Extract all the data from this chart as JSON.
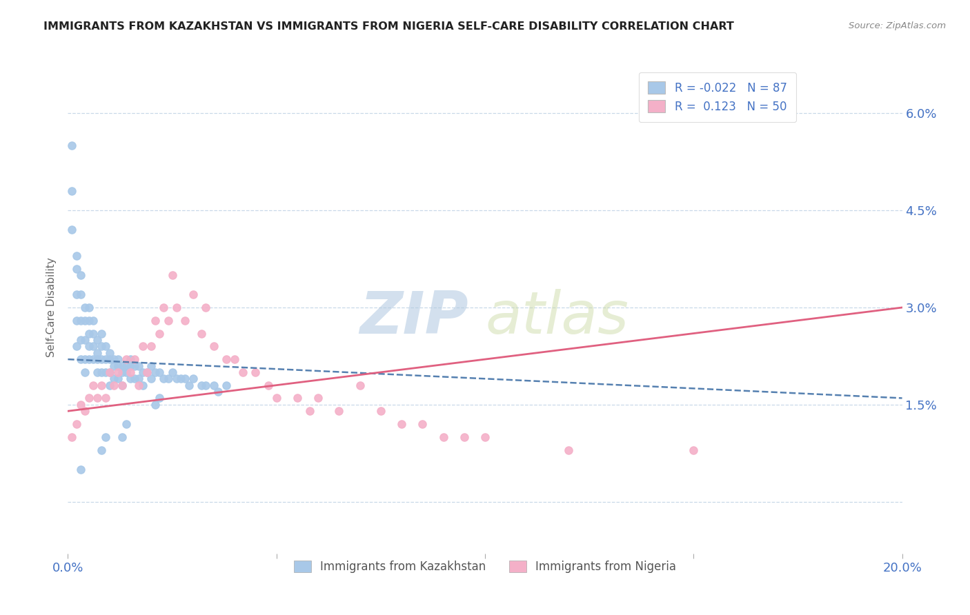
{
  "title": "IMMIGRANTS FROM KAZAKHSTAN VS IMMIGRANTS FROM NIGERIA SELF-CARE DISABILITY CORRELATION CHART",
  "source": "Source: ZipAtlas.com",
  "watermark_zip": "ZIP",
  "watermark_atlas": "atlas",
  "xlabel": "",
  "ylabel": "Self-Care Disability",
  "xlim": [
    0.0,
    0.2
  ],
  "ylim": [
    -0.008,
    0.068
  ],
  "kazakhstan_R": -0.022,
  "kazakhstan_N": 87,
  "nigeria_R": 0.123,
  "nigeria_N": 50,
  "kazakhstan_color": "#a8c8e8",
  "nigeria_color": "#f4b0c8",
  "kazakhstan_line_color": "#5580b0",
  "nigeria_line_color": "#e06080",
  "background_color": "#ffffff",
  "grid_color": "#c8d8e8",
  "title_color": "#222222",
  "axis_label_color": "#4472c4",
  "kaz_trend_x0": 0.0,
  "kaz_trend_x1": 0.2,
  "kaz_trend_y0": 0.022,
  "kaz_trend_y1": 0.016,
  "nig_trend_x0": 0.0,
  "nig_trend_x1": 0.2,
  "nig_trend_y0": 0.014,
  "nig_trend_y1": 0.03,
  "kazakhstan_x": [
    0.001,
    0.001,
    0.001,
    0.002,
    0.002,
    0.002,
    0.002,
    0.002,
    0.003,
    0.003,
    0.003,
    0.003,
    0.003,
    0.004,
    0.004,
    0.004,
    0.004,
    0.004,
    0.005,
    0.005,
    0.005,
    0.005,
    0.005,
    0.006,
    0.006,
    0.006,
    0.006,
    0.007,
    0.007,
    0.007,
    0.007,
    0.008,
    0.008,
    0.008,
    0.008,
    0.009,
    0.009,
    0.009,
    0.01,
    0.01,
    0.01,
    0.01,
    0.011,
    0.011,
    0.011,
    0.012,
    0.012,
    0.012,
    0.013,
    0.013,
    0.013,
    0.014,
    0.014,
    0.015,
    0.015,
    0.015,
    0.016,
    0.016,
    0.017,
    0.017,
    0.018,
    0.018,
    0.019,
    0.02,
    0.02,
    0.021,
    0.022,
    0.023,
    0.024,
    0.025,
    0.026,
    0.027,
    0.028,
    0.029,
    0.03,
    0.032,
    0.033,
    0.035,
    0.036,
    0.038,
    0.021,
    0.022,
    0.013,
    0.014,
    0.008,
    0.009,
    0.003
  ],
  "kazakhstan_y": [
    0.055,
    0.048,
    0.042,
    0.038,
    0.036,
    0.032,
    0.028,
    0.024,
    0.035,
    0.032,
    0.028,
    0.025,
    0.022,
    0.03,
    0.028,
    0.025,
    0.022,
    0.02,
    0.03,
    0.028,
    0.026,
    0.024,
    0.022,
    0.028,
    0.026,
    0.024,
    0.022,
    0.025,
    0.023,
    0.022,
    0.02,
    0.026,
    0.024,
    0.022,
    0.02,
    0.024,
    0.022,
    0.02,
    0.023,
    0.022,
    0.02,
    0.018,
    0.022,
    0.021,
    0.019,
    0.022,
    0.021,
    0.019,
    0.021,
    0.02,
    0.018,
    0.021,
    0.02,
    0.022,
    0.021,
    0.019,
    0.021,
    0.019,
    0.021,
    0.019,
    0.02,
    0.018,
    0.02,
    0.021,
    0.019,
    0.02,
    0.02,
    0.019,
    0.019,
    0.02,
    0.019,
    0.019,
    0.019,
    0.018,
    0.019,
    0.018,
    0.018,
    0.018,
    0.017,
    0.018,
    0.015,
    0.016,
    0.01,
    0.012,
    0.008,
    0.01,
    0.005
  ],
  "nigeria_x": [
    0.001,
    0.002,
    0.003,
    0.004,
    0.005,
    0.006,
    0.007,
    0.008,
    0.009,
    0.01,
    0.011,
    0.012,
    0.013,
    0.014,
    0.015,
    0.016,
    0.017,
    0.018,
    0.019,
    0.02,
    0.021,
    0.022,
    0.023,
    0.024,
    0.025,
    0.026,
    0.028,
    0.03,
    0.032,
    0.033,
    0.035,
    0.038,
    0.04,
    0.042,
    0.045,
    0.048,
    0.05,
    0.055,
    0.058,
    0.06,
    0.065,
    0.07,
    0.075,
    0.08,
    0.085,
    0.09,
    0.095,
    0.1,
    0.12,
    0.15
  ],
  "nigeria_y": [
    0.01,
    0.012,
    0.015,
    0.014,
    0.016,
    0.018,
    0.016,
    0.018,
    0.016,
    0.02,
    0.018,
    0.02,
    0.018,
    0.022,
    0.02,
    0.022,
    0.018,
    0.024,
    0.02,
    0.024,
    0.028,
    0.026,
    0.03,
    0.028,
    0.035,
    0.03,
    0.028,
    0.032,
    0.026,
    0.03,
    0.024,
    0.022,
    0.022,
    0.02,
    0.02,
    0.018,
    0.016,
    0.016,
    0.014,
    0.016,
    0.014,
    0.018,
    0.014,
    0.012,
    0.012,
    0.01,
    0.01,
    0.01,
    0.008,
    0.008
  ]
}
